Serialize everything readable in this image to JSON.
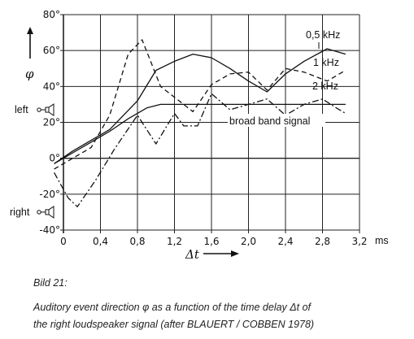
{
  "chart_data": {
    "type": "line",
    "xlabel": "Δt",
    "x_unit": "ms",
    "ylabel": "φ",
    "xlim": [
      0,
      3.2
    ],
    "ylim": [
      -40,
      80
    ],
    "x_ticks": [
      "0",
      "0,4",
      "0,8",
      "1,2",
      "1,6",
      "2,0",
      "2,4",
      "2,8",
      "3,2"
    ],
    "x_tick_values": [
      0,
      0.4,
      0.8,
      1.2,
      1.6,
      2.0,
      2.4,
      2.8,
      3.2
    ],
    "y_ticks": [
      "80°",
      "60°",
      "40°",
      "20°",
      "0°",
      "-20°",
      "-40°"
    ],
    "y_tick_values": [
      80,
      60,
      40,
      20,
      0,
      -20,
      -40
    ],
    "grid": true,
    "side_labels": [
      {
        "text": "left",
        "y": 27
      },
      {
        "text": "right",
        "y": -30
      }
    ],
    "series": [
      {
        "name": "0,5 kHz",
        "style": "solid",
        "x": [
          -0.1,
          0.1,
          0.3,
          0.5,
          0.8,
          1.0,
          1.2,
          1.4,
          1.6,
          1.8,
          2.0,
          2.2,
          2.4,
          2.6,
          2.85,
          3.05
        ],
        "y": [
          -3,
          4,
          10,
          16,
          32,
          49,
          54,
          58,
          56,
          50,
          43,
          37,
          47,
          54,
          61,
          58
        ]
      },
      {
        "name": "1 kHz",
        "style": "dashed",
        "x": [
          -0.1,
          0.1,
          0.3,
          0.5,
          0.7,
          0.85,
          1.05,
          1.2,
          1.4,
          1.6,
          1.8,
          2.0,
          2.2,
          2.4,
          2.6,
          2.85,
          3.05
        ],
        "y": [
          -6,
          0,
          6,
          24,
          58,
          66,
          40,
          34,
          26,
          41,
          47,
          48,
          38,
          50,
          48,
          43,
          49
        ]
      },
      {
        "name": "2 kHz",
        "style": "dashdot",
        "x": [
          -0.1,
          0.05,
          0.15,
          0.35,
          0.55,
          0.8,
          1.0,
          1.2,
          1.3,
          1.45,
          1.6,
          1.8,
          2.0,
          2.2,
          2.4,
          2.6,
          2.8,
          2.95,
          3.05
        ],
        "y": [
          -8,
          -22,
          -27,
          -12,
          5,
          24,
          8,
          25,
          18,
          18,
          36,
          27,
          30,
          33,
          24,
          30,
          33,
          28,
          25
        ]
      },
      {
        "name": "broad band signal",
        "style": "solid",
        "x": [
          -0.1,
          0.1,
          0.3,
          0.5,
          0.7,
          0.9,
          1.05,
          1.3,
          1.6,
          2.0,
          2.4,
          2.8,
          3.05
        ],
        "y": [
          -3,
          3,
          9,
          15,
          22,
          28,
          30,
          30,
          30,
          30,
          30,
          30,
          30
        ]
      }
    ]
  },
  "caption": {
    "title": "Bild 21:",
    "line1": "Auditory event direction φ as a function of the time delay Δt of",
    "line2": "the right loudspeaker signal (after BLAUERT / COBBEN 1978)"
  }
}
